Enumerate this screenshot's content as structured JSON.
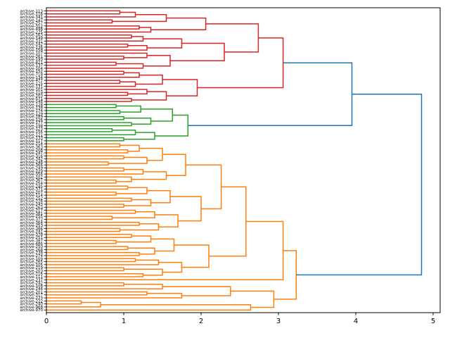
{
  "figure": {
    "background": "#ffffff",
    "kind": "matplotlib-dendrogram"
  },
  "chart_data": {
    "type": "dendrogram",
    "orientation": "right",
    "title": "",
    "xlabel": "",
    "ylabel": "",
    "grid": false,
    "axis": {
      "xlim": [
        0,
        5.09
      ],
      "ticks": [
        0,
        1,
        2,
        3,
        4,
        5
      ]
    },
    "palette": {
      "blue": "#1f77b4",
      "red": "#d62728",
      "green": "#2ca02c",
      "orange": "#ff7f0e"
    },
    "labels": [
      "archive-113",
      "archive-116",
      "archive-341",
      "archive-147",
      "archive-257",
      "archive-312",
      "archive-498",
      "archive-225",
      "archive-163",
      "archive-149",
      "archive-331",
      "archive-142",
      "archive-136",
      "archive-158",
      "archive-107",
      "archive-261",
      "archive-193",
      "archive-821",
      "archive-137",
      "archive-104",
      "archive-152",
      "archive-718",
      "archive-134",
      "archive-477",
      "archive-125",
      "archive-131",
      "archive-101",
      "archive-119",
      "archive-103",
      "archive-571",
      "archive-148",
      "archive-128",
      "archive-138",
      "archive-174",
      "archive-129",
      "archive-189",
      "archive-126",
      "archive-177",
      "archive-198",
      "archive-123",
      "archive-156",
      "archive-121",
      "archive-133",
      "archive-117",
      "archive-214",
      "archive-363",
      "archive-208",
      "archive-247",
      "archive-316",
      "archive-342",
      "archive-248",
      "archive-366",
      "archive-249",
      "archive-229",
      "archive-356",
      "archive-102",
      "archive-367",
      "archive-254",
      "archive-245",
      "archive-371",
      "archive-207",
      "archive-114",
      "archive-252",
      "archive-226",
      "archive-243",
      "archive-263",
      "archive-217",
      "archive-381",
      "archive-255",
      "archive-372",
      "archive-364",
      "archive-253",
      "archive-386",
      "archive-241",
      "archive-378",
      "archive-251",
      "archive-387",
      "archive-486",
      "archive-250",
      "archive-268",
      "archive-238",
      "archive-274",
      "archive-109",
      "archive-265",
      "archive-105",
      "archive-219",
      "archive-203",
      "archive-216",
      "archive-111",
      "archive-237",
      "archive-242",
      "archive-108",
      "archive-244",
      "archive-201",
      "archive-317",
      "archive-223",
      "archive-222",
      "archive-240",
      "archive-968",
      "archive-970"
    ],
    "clusters": [
      {
        "name": "red",
        "color": "red",
        "tree": [
          3.06,
          [
            2.74,
            [
              2.06,
              [
                1.55,
                [
                  1.15,
                  [
                    0.95,
                    0,
                    1
                  ],
                  2
                ],
                [
                  0.85,
                  3,
                  4
                ]
              ],
              [
                1.35,
                [
                  1.2,
                  5,
                  6
                ],
                7
              ]
            ],
            [
              2.3,
              [
                1.75,
                [
                  1.25,
                  [
                    1.1,
                    8,
                    9
                  ],
                  10
                ],
                [
                  1.3,
                  [
                    1.05,
                    11,
                    12
                  ],
                  13
                ]
              ],
              [
                1.6,
                [
                  1.3,
                  14,
                  [
                    1.0,
                    15,
                    16
                  ]
                ],
                [
                  1.25,
                  [
                    0.9,
                    17,
                    18
                  ],
                  19
                ]
              ]
            ]
          ],
          [
            1.95,
            [
              1.5,
              [
                1.2,
                [
                  1.0,
                  20,
                  21
                ],
                22
              ],
              [
                1.15,
                [
                  0.95,
                  23,
                  24
                ],
                25
              ]
            ],
            [
              1.55,
              [
                1.3,
                26,
                [
                  1.05,
                  27,
                  28
                ]
              ],
              [
                1.1,
                29,
                30
              ]
            ]
          ]
        ]
      },
      {
        "name": "green",
        "color": "green",
        "tree": [
          1.83,
          [
            1.63,
            [
              1.22,
              [
                0.9,
                31,
                32
              ],
              [
                0.95,
                33,
                34
              ]
            ],
            [
              1.35,
              [
                1.0,
                35,
                36
              ],
              [
                1.1,
                37,
                38
              ]
            ]
          ],
          [
            1.4,
            [
              1.15,
              [
                0.85,
                39,
                40
              ],
              41
            ],
            [
              1.0,
              42,
              43
            ]
          ]
        ]
      },
      {
        "name": "orange",
        "color": "orange",
        "tree": [
          3.23,
          [
            3.06,
            [
              2.58,
              [
                2.26,
                [
                  1.8,
                  [
                    1.5,
                    [
                      1.2,
                      [
                        0.95,
                        44,
                        45
                      ],
                      [
                        1.05,
                        46,
                        47
                      ]
                    ],
                    [
                      1.3,
                      [
                        1.0,
                        48,
                        49
                      ],
                      [
                        0.8,
                        50,
                        51
                      ]
                    ]
                  ],
                  [
                    1.55,
                    [
                      1.25,
                      [
                        1.0,
                        52,
                        53
                      ],
                      54
                    ],
                    [
                      1.1,
                      55,
                      [
                        0.9,
                        56,
                        57
                      ]
                    ]
                  ]
                ],
                [
                  2.0,
                  [
                    1.6,
                    [
                      1.3,
                      [
                        1.05,
                        58,
                        59
                      ],
                      [
                        0.9,
                        60,
                        61
                      ]
                    ],
                    [
                      1.35,
                      [
                        1.1,
                        62,
                        63
                      ],
                      [
                        1.0,
                        64,
                        65
                      ]
                    ]
                  ],
                  [
                    1.7,
                    [
                      1.4,
                      [
                        1.15,
                        66,
                        67
                      ],
                      [
                        0.85,
                        68,
                        69
                      ]
                    ],
                    [
                      1.45,
                      [
                        1.2,
                        70,
                        71
                      ],
                      [
                        0.95,
                        72,
                        73
                      ]
                    ]
                  ]
                ]
              ],
              [
                2.1,
                [
                  1.65,
                  [
                    1.35,
                    [
                      1.1,
                      74,
                      75
                    ],
                    [
                      0.9,
                      76,
                      77
                    ]
                  ],
                  [
                    1.4,
                    [
                      1.05,
                      78,
                      79
                    ],
                    [
                      1.2,
                      80,
                      81
                    ]
                  ]
                ],
                [
                  1.75,
                  [
                    1.45,
                    [
                      1.15,
                      82,
                      83
                    ],
                    84
                  ],
                  [
                    1.5,
                    [
                      1.0,
                      85,
                      86
                    ],
                    [
                      1.25,
                      87,
                      88
                    ]
                  ]
                ]
              ]
            ],
            89
          ],
          [
            2.94,
            [
              2.38,
              [
                1.5,
                [
                  1.0,
                  90,
                  91
                ],
                92
              ],
              [
                1.75,
                [
                  1.3,
                  93,
                  94
                ],
                95
              ]
            ],
            [
              2.64,
              [
                0.7,
                [
                  0.45,
                  96,
                  97
                ],
                98
              ],
              99
            ]
          ]
        ]
      }
    ],
    "top_links": [
      {
        "distance": 3.95,
        "color": "blue",
        "merge": [
          "red",
          "green"
        ]
      },
      {
        "distance": 4.85,
        "color": "blue",
        "merge": [
          "merged",
          "orange"
        ]
      }
    ]
  }
}
